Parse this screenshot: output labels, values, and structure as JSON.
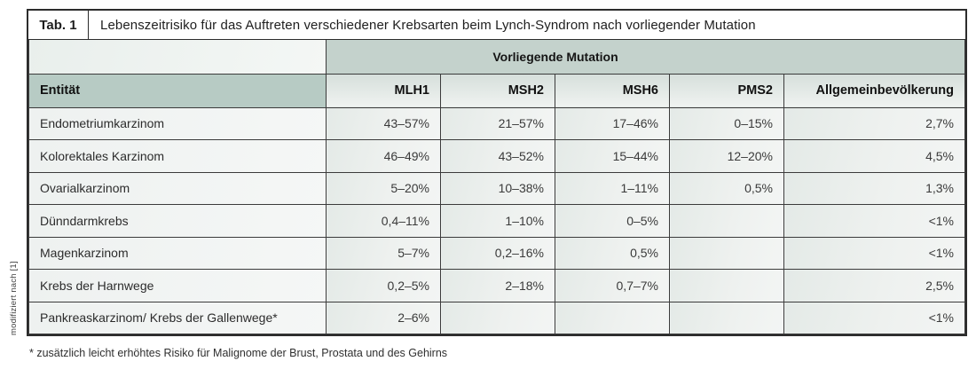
{
  "table": {
    "tab_label": "Tab. 1",
    "title": "Lebenszeitrisiko für das Auftreten verschiedener Krebsarten beim Lynch-Syndrom nach vorliegender Mutation",
    "group_header": "Vorliegende Mutation",
    "columns": [
      "Entität",
      "MLH1",
      "MSH2",
      "MSH6",
      "PMS2",
      "Allgemeinbevölkerung"
    ],
    "rows": [
      {
        "entity": "Endometriumkarzinom",
        "values": [
          "43–57%",
          "21–57%",
          "17–46%",
          "0–15%",
          "2,7%"
        ]
      },
      {
        "entity": "Kolorektales Karzinom",
        "values": [
          "46–49%",
          "43–52%",
          "15–44%",
          "12–20%",
          "4,5%"
        ]
      },
      {
        "entity": "Ovarialkarzinom",
        "values": [
          "5–20%",
          "10–38%",
          "1–11%",
          "0,5%",
          "1,3%"
        ]
      },
      {
        "entity": "Dünndarmkrebs",
        "values": [
          "0,4–11%",
          "1–10%",
          "0–5%",
          "",
          "<1%"
        ]
      },
      {
        "entity": "Magenkarzinom",
        "values": [
          "5–7%",
          "0,2–16%",
          "0,5%",
          "",
          "<1%"
        ]
      },
      {
        "entity": "Krebs der Harnwege",
        "values": [
          "0,2–5%",
          "2–18%",
          "0,7–7%",
          "",
          "2,5%"
        ]
      },
      {
        "entity": "Pankreaskarzinom/ Krebs der Gallenwege*",
        "values": [
          "2–6%",
          "",
          "",
          "",
          "<1%"
        ]
      }
    ],
    "footnote": "* zusätzlich leicht erhöhtes Risiko für Malignome der Brust, Prostata und des Gehirns",
    "source_note": "modifiziert nach [1]"
  },
  "colors": {
    "band_background": "#c4d2cc",
    "entity_header_background": "#b7cbc4",
    "border": "#2c2c2c"
  }
}
